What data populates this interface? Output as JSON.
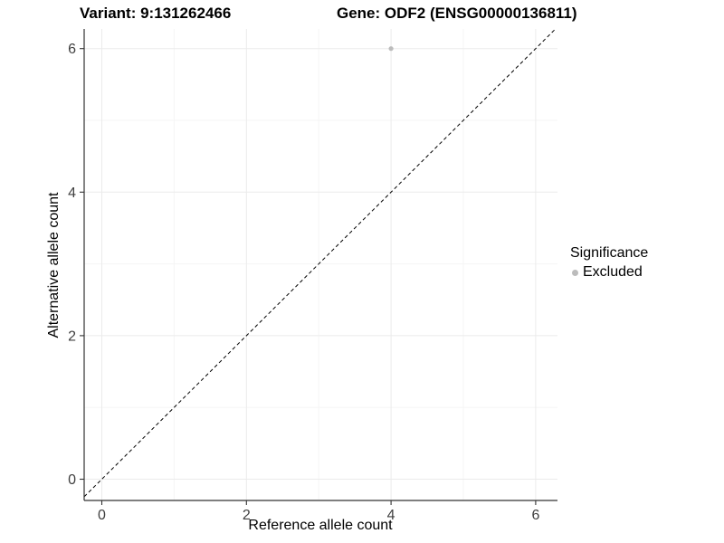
{
  "chart_data": {
    "type": "scatter",
    "title_variant": "Variant: 9:131262466",
    "title_gene": "Gene: ODF2 (ENSG00000136811)",
    "xlabel": "Reference allele count",
    "ylabel": "Alternative allele count",
    "x_ticks": [
      0,
      2,
      4,
      6
    ],
    "y_ticks": [
      0,
      2,
      4,
      6
    ],
    "x_minor_ticks": [
      1,
      3,
      5
    ],
    "y_minor_ticks": [
      1,
      3,
      5
    ],
    "xlim": [
      -0.25,
      6.3
    ],
    "ylim": [
      -0.3,
      6.27
    ],
    "grid": "major and minor, light gray on white",
    "points": [
      {
        "x": 4,
        "y": 6,
        "series": "Excluded"
      }
    ],
    "reference_line": {
      "equation": "y = x",
      "style": "dashed",
      "color": "#000000"
    },
    "legend": {
      "title": "Significance",
      "position": "right",
      "items": [
        {
          "label": "Excluded",
          "color": "#bcbcbc"
        }
      ]
    },
    "colors": {
      "background": "#ffffff",
      "point": "#bcbcbc",
      "grid_major": "#ebebeb",
      "grid_minor": "#f5f5f5",
      "axis_line": "#333333",
      "tick_mark": "#333333",
      "tick_label": "#404040",
      "title_text": "#000000",
      "dashed_line": "#000000"
    }
  }
}
